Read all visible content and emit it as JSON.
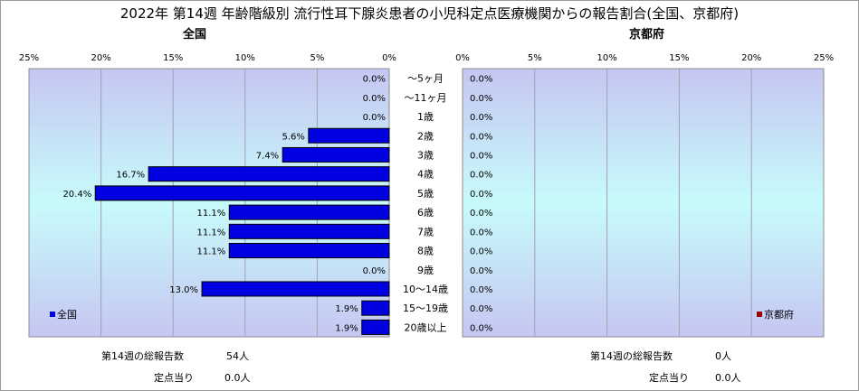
{
  "title": "2022年 第14週 年齢階級別 流行性耳下腺炎患者の小児科定点医療機関からの報告割合(全国、京都府)",
  "colors": {
    "national": "#0000e0",
    "kyoto": "#990000",
    "plot_bg_edge": "#c6c6f2",
    "plot_bg_mid": "#c7fbfb"
  },
  "chart_data": [
    {
      "type": "bar",
      "orientation": "horizontal-reversed",
      "title": "全国",
      "xlim": [
        0,
        25
      ],
      "x_ticks": [
        "25%",
        "20%",
        "15%",
        "10%",
        "5%",
        "0%"
      ],
      "categories": [
        "〜5ヶ月",
        "〜11ヶ月",
        "1歳",
        "2歳",
        "3歳",
        "4歳",
        "5歳",
        "6歳",
        "7歳",
        "8歳",
        "9歳",
        "10〜14歳",
        "15〜19歳",
        "20歳以上"
      ],
      "series": [
        {
          "name": "全国",
          "values": [
            0.0,
            0.0,
            0.0,
            5.6,
            7.4,
            16.7,
            20.4,
            11.1,
            11.1,
            11.1,
            0.0,
            13.0,
            1.9,
            1.9
          ],
          "labels": [
            "0.0%",
            "0.0%",
            "0.0%",
            "5.6%",
            "7.4%",
            "16.7%",
            "20.4%",
            "11.1%",
            "11.1%",
            "11.1%",
            "0.0%",
            "13.0%",
            "1.9%",
            "1.9%"
          ]
        }
      ],
      "legend": "bottom-left",
      "grid": true
    },
    {
      "type": "bar",
      "orientation": "horizontal",
      "title": "京都府",
      "xlim": [
        0,
        25
      ],
      "x_ticks": [
        "0%",
        "5%",
        "10%",
        "15%",
        "20%",
        "25%"
      ],
      "categories": [
        "〜5ヶ月",
        "〜11ヶ月",
        "1歳",
        "2歳",
        "3歳",
        "4歳",
        "5歳",
        "6歳",
        "7歳",
        "8歳",
        "9歳",
        "10〜14歳",
        "15〜19歳",
        "20歳以上"
      ],
      "series": [
        {
          "name": "京都府",
          "values": [
            0,
            0,
            0,
            0,
            0,
            0,
            0,
            0,
            0,
            0,
            0,
            0,
            0,
            0
          ],
          "labels": [
            "0.0%",
            "0.0%",
            "0.0%",
            "0.0%",
            "0.0%",
            "0.0%",
            "0.0%",
            "0.0%",
            "0.0%",
            "0.0%",
            "0.0%",
            "0.0%",
            "0.0%",
            "0.0%"
          ]
        }
      ],
      "legend": "bottom-right",
      "grid": true
    }
  ],
  "footer": {
    "national": {
      "total_label": "第14週の総報告数",
      "total_value": "54人",
      "per_label": "定点当り",
      "per_value": "0.0人"
    },
    "kyoto": {
      "total_label": "第14週の総報告数",
      "total_value": "0人",
      "per_label": "定点当り",
      "per_value": "0.0人"
    }
  }
}
